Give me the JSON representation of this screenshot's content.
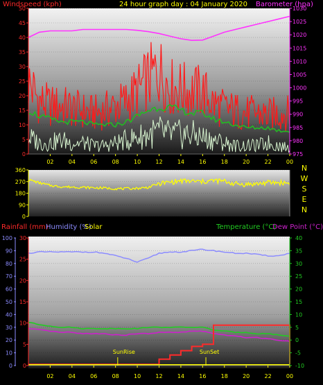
{
  "title": "24 hour graph day : 04 January 2020",
  "colors": {
    "background": "#000000",
    "wind": "#ff1a1a",
    "wind_gust": "#ff0000",
    "wind_avg": "#22bb22",
    "wind_min": "#d8f5d0",
    "barometer": "#ff33ff",
    "direction": "#ffff00",
    "rainfall": "#ff2a2a",
    "humidity": "#8c8cff",
    "solar": "#ffff00",
    "temperature": "#22cc22",
    "dewpoint": "#cc22cc",
    "axis_left_top": "#ff2a2a",
    "axis_right_top": "#ff33ff",
    "axis_temp": "#22cc22",
    "axis_rain": "#ff2a2a",
    "axis_hum": "#8c8cff",
    "ticks_x": "#ffff00"
  },
  "x_tick_labels": [
    "02",
    "04",
    "06",
    "08",
    "10",
    "12",
    "14",
    "16",
    "18",
    "20",
    "22",
    "00"
  ],
  "chart_data": [
    {
      "type": "line",
      "title": "24 hour graph day : 04 January 2020",
      "ylabel": "Windspeed (kph)",
      "ylabel_right": "Barometer (hpa)",
      "ylim": [
        0,
        50
      ],
      "ylim_right": [
        975,
        1030
      ],
      "yticks": [
        0,
        5,
        10,
        15,
        20,
        25,
        30,
        35,
        40,
        45,
        50
      ],
      "yticks_right": [
        975,
        980,
        985,
        990,
        995,
        1000,
        1005,
        1010,
        1015,
        1020,
        1025,
        1030
      ],
      "x_hours": [
        0,
        1,
        2,
        3,
        4,
        5,
        6,
        7,
        8,
        9,
        10,
        11,
        12,
        13,
        14,
        15,
        16,
        17,
        18,
        19,
        20,
        21,
        22,
        23,
        24
      ],
      "series": [
        {
          "name": "Windspeed (kph)",
          "values": [
            30,
            22,
            20,
            20,
            19,
            18,
            17,
            18,
            20,
            22,
            26,
            31,
            35,
            28,
            27,
            26,
            26,
            21,
            19,
            18,
            17,
            17,
            16,
            17,
            17
          ]
        },
        {
          "name": "",
          "values": [
            15,
            13,
            12,
            11,
            11,
            11,
            10,
            10,
            10,
            11,
            13,
            15,
            16,
            16,
            15,
            14,
            14,
            12,
            11,
            10,
            9,
            9,
            9,
            8,
            8
          ]
        },
        {
          "name": "",
          "values": [
            6,
            4,
            4,
            5,
            4,
            4,
            3,
            3,
            4,
            5,
            6,
            7,
            8,
            7,
            7,
            7,
            6,
            5,
            4,
            3,
            3,
            3,
            4,
            3,
            2
          ]
        },
        {
          "name": "Barometer (hpa)",
          "values": [
            1019,
            1021,
            1021.5,
            1021.5,
            1021.5,
            1022,
            1022,
            1022,
            1022,
            1022,
            1021.7,
            1021.2,
            1020.5,
            1019.5,
            1018.5,
            1017.9,
            1018,
            1019.5,
            1021,
            1022,
            1023,
            1024,
            1025,
            1026,
            1027
          ]
        }
      ]
    },
    {
      "type": "line",
      "ylabel": "",
      "ylim": [
        0,
        360
      ],
      "yticks": [
        0,
        90,
        180,
        270,
        360
      ],
      "direction_labels": [
        "N",
        "W",
        "S",
        "E",
        "N"
      ],
      "x_hours": [
        0,
        1,
        2,
        3,
        4,
        5,
        6,
        7,
        8,
        9,
        10,
        11,
        12,
        13,
        14,
        15,
        16,
        17,
        18,
        19,
        20,
        21,
        22,
        23,
        24
      ],
      "series": [
        {
          "name": "",
          "values": [
            285,
            260,
            240,
            230,
            228,
            225,
            222,
            220,
            215,
            215,
            218,
            225,
            255,
            265,
            275,
            272,
            268,
            278,
            272,
            252,
            248,
            252,
            262,
            262,
            258
          ]
        }
      ]
    },
    {
      "type": "line",
      "ylabel": "Rainfall (mm)",
      "ylabel_hum": "Humidity (%)",
      "ylabel_solar": "Solar",
      "ylabel_right": "Temperature (°C)",
      "ylabel_right2": "Dew Point (°C)",
      "ylim_rain": [
        0,
        30
      ],
      "ylim_hum": [
        0,
        100
      ],
      "ylim_temp": [
        -10,
        40
      ],
      "yticks_rain": [
        0,
        5,
        10,
        15,
        20,
        25,
        30
      ],
      "yticks_hum": [
        0,
        10,
        20,
        30,
        40,
        50,
        60,
        70,
        80,
        90,
        100
      ],
      "yticks_temp": [
        -10,
        -5,
        0,
        5,
        10,
        15,
        20,
        25,
        30,
        35,
        40
      ],
      "annotations": [
        "SunRise",
        "SunSet"
      ],
      "sunrise_hour": 8.2,
      "sunset_hour": 16.3,
      "x_hours": [
        0,
        1,
        2,
        3,
        4,
        5,
        6,
        7,
        8,
        9,
        10,
        11,
        12,
        13,
        14,
        15,
        16,
        17,
        18,
        19,
        20,
        21,
        22,
        23,
        24
      ],
      "series": [
        {
          "name": "Humidity (%)",
          "values": [
            88,
            89,
            89,
            89,
            89,
            89,
            89,
            88,
            86,
            84,
            81,
            84,
            88,
            89,
            89,
            90,
            91,
            90,
            89,
            88,
            88,
            87,
            86,
            86,
            88
          ]
        },
        {
          "name": "Temperature (°C)",
          "values": [
            7,
            6,
            5.5,
            5,
            5,
            4.5,
            4.5,
            4.5,
            4.5,
            4.5,
            4.5,
            5,
            5,
            5,
            5,
            5,
            5,
            4,
            3.5,
            3,
            3,
            2.5,
            2.5,
            2,
            1.5
          ]
        },
        {
          "name": "Dew Point (°C)",
          "values": [
            4.5,
            4,
            3.5,
            3,
            3,
            2.5,
            2.5,
            2.5,
            2,
            2,
            2.5,
            2.5,
            3,
            3,
            3,
            3.5,
            3.5,
            2.5,
            2,
            1.5,
            1,
            1,
            0.5,
            0,
            -0.5
          ]
        },
        {
          "name": "Rainfall (mm)",
          "values": [
            0.3,
            0.3,
            0.3,
            0.3,
            0.3,
            0.3,
            0.3,
            0.3,
            0.3,
            0.3,
            0.3,
            0.3,
            1.5,
            2.5,
            3.5,
            4.5,
            5.0,
            9.5,
            9.5,
            9.5,
            9.5,
            9.5,
            9.5,
            9.5,
            0.3
          ]
        },
        {
          "name": "Solar",
          "values": [
            0,
            0,
            0,
            0,
            0,
            0,
            0,
            0,
            0,
            0,
            0,
            0,
            0,
            0,
            0,
            0,
            0,
            0,
            0,
            0,
            0,
            0,
            0,
            0,
            0
          ]
        }
      ]
    }
  ],
  "panel1": {
    "ylabel_left": "Windspeed (kph)",
    "ylabel_right": "Barometer (hpa)",
    "yticks_left": [
      "0",
      "5",
      "10",
      "15",
      "20",
      "25",
      "30",
      "35",
      "40",
      "45",
      "50"
    ],
    "yticks_right": [
      "975",
      "980",
      "985",
      "990",
      "995",
      "1000",
      "1005",
      "1010",
      "1015",
      "1020",
      "1025",
      "1030"
    ]
  },
  "panel2": {
    "yticks_left": [
      "0",
      "90",
      "180",
      "270",
      "360"
    ],
    "dir_labels": [
      "N",
      "W",
      "S",
      "E",
      "N"
    ]
  },
  "panel3": {
    "label_rain": "Rainfall (mm)",
    "label_hum": "Humidity (%)",
    "label_solar": "Solar",
    "label_temp": "Temperature (°C)",
    "label_dew": "Dew Point (°C)",
    "yticks_rain": [
      "0",
      "5",
      "10",
      "15",
      "20",
      "25",
      "30"
    ],
    "yticks_hum": [
      "0",
      "10",
      "20",
      "30",
      "40",
      "50",
      "60",
      "70",
      "80",
      "90",
      "100"
    ],
    "yticks_temp": [
      "-10",
      "-5",
      "0",
      "5",
      "10",
      "15",
      "20",
      "25",
      "30",
      "35",
      "40"
    ],
    "sunrise": "SunRise",
    "sunset": "SunSet"
  }
}
